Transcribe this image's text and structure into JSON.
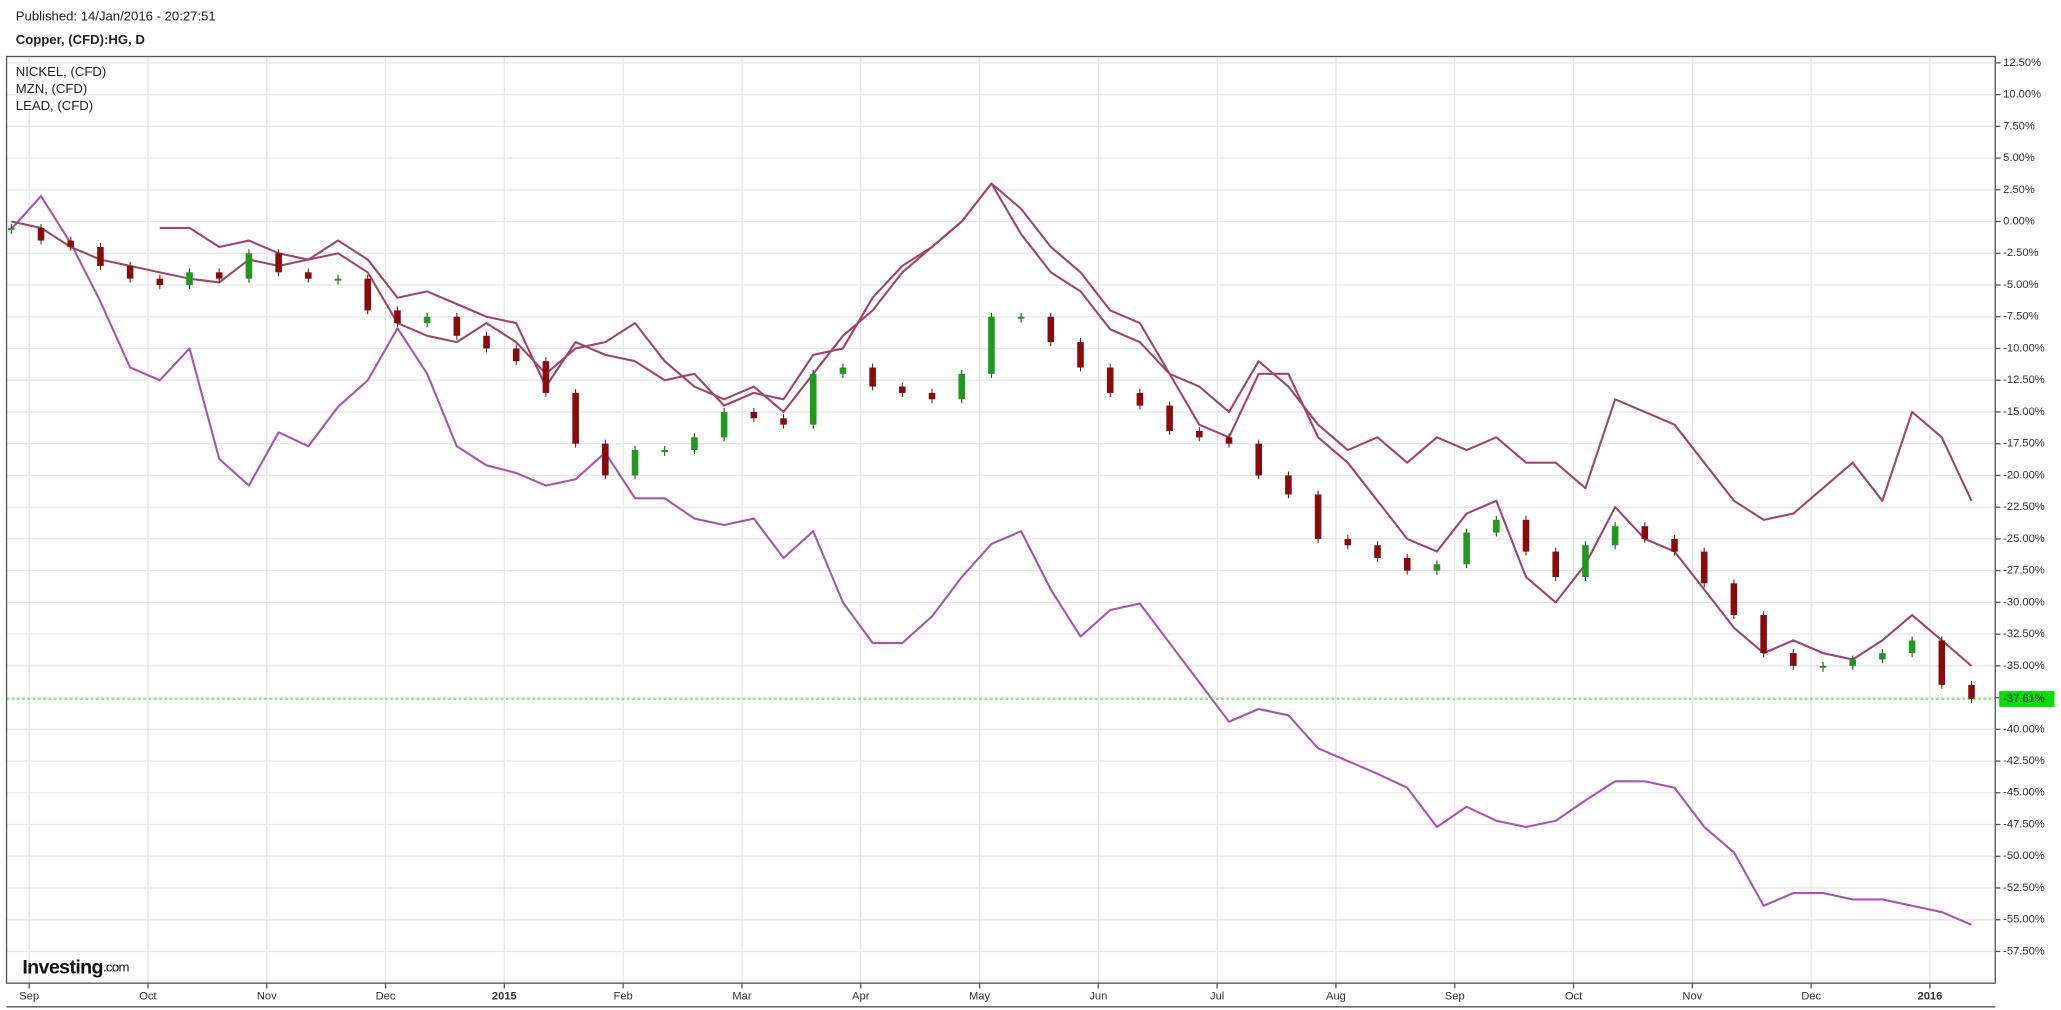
{
  "chart_data": {
    "type": "line",
    "published": "Published: 14/Jan/2016 - 20:27:51",
    "title": "Copper, (CFD):HG, D",
    "logo": "Investing",
    "logo_suffix": ".com",
    "grid": true,
    "x": [
      -0.15,
      0.1,
      0.35,
      0.6,
      0.85,
      1.1,
      1.35,
      1.6,
      1.85,
      2.1,
      2.35,
      2.6,
      2.85,
      3.1,
      3.35,
      3.6,
      3.85,
      4.1,
      4.35,
      4.6,
      4.85,
      5.1,
      5.35,
      5.6,
      5.85,
      6.1,
      6.35,
      6.6,
      6.85,
      7.1,
      7.35,
      7.6,
      7.85,
      8.1,
      8.35,
      8.6,
      8.85,
      9.1,
      9.35,
      9.6,
      9.85,
      10.1,
      10.35,
      10.6,
      10.85,
      11.1,
      11.35,
      11.6,
      11.85,
      12.1,
      12.35,
      12.6,
      12.85,
      13.1,
      13.35,
      13.6,
      13.85,
      14.1,
      14.35,
      14.6,
      14.85,
      15.1,
      15.35,
      15.6,
      15.85,
      16.1,
      16.35
    ],
    "xlim": [
      -0.19,
      16.55
    ],
    "xticks": [
      {
        "value": 0,
        "label": "Sep"
      },
      {
        "value": 1,
        "label": "Oct"
      },
      {
        "value": 2,
        "label": "Nov"
      },
      {
        "value": 3,
        "label": "Dec"
      },
      {
        "value": 4,
        "label": "2015"
      },
      {
        "value": 5,
        "label": "Feb"
      },
      {
        "value": 6,
        "label": "Mar"
      },
      {
        "value": 7,
        "label": "Apr"
      },
      {
        "value": 8,
        "label": "May"
      },
      {
        "value": 9,
        "label": "Jun"
      },
      {
        "value": 10,
        "label": "Jul"
      },
      {
        "value": 11,
        "label": "Aug"
      },
      {
        "value": 12,
        "label": "Sep"
      },
      {
        "value": 13,
        "label": "Oct"
      },
      {
        "value": 14,
        "label": "Nov"
      },
      {
        "value": 15,
        "label": "Dec"
      },
      {
        "value": 16,
        "label": "2016"
      }
    ],
    "ylim": [
      -60,
      13
    ],
    "yticks": [
      {
        "value": 12.5,
        "label": "12.50%"
      },
      {
        "value": 10,
        "label": "10.00%"
      },
      {
        "value": 7.5,
        "label": "7.50%"
      },
      {
        "value": 5,
        "label": "5.00%"
      },
      {
        "value": 2.5,
        "label": "2.50%"
      },
      {
        "value": 0,
        "label": "0.00%"
      },
      {
        "value": -2.5,
        "label": "-2.50%"
      },
      {
        "value": -5,
        "label": "-5.00%"
      },
      {
        "value": -7.5,
        "label": "-7.50%"
      },
      {
        "value": -10,
        "label": "-10.00%"
      },
      {
        "value": -12.5,
        "label": "-12.50%"
      },
      {
        "value": -15,
        "label": "-15.00%"
      },
      {
        "value": -17.5,
        "label": "-17.50%"
      },
      {
        "value": -20,
        "label": "-20.00%"
      },
      {
        "value": -22.5,
        "label": "-22.50%"
      },
      {
        "value": -25,
        "label": "-25.00%"
      },
      {
        "value": -27.5,
        "label": "-27.50%"
      },
      {
        "value": -30,
        "label": "-30.00%"
      },
      {
        "value": -32.5,
        "label": "-32.50%"
      },
      {
        "value": -35,
        "label": "-35.00%"
      },
      {
        "value": -37.5,
        "label": "-37.50%"
      },
      {
        "value": -40,
        "label": "-40.00%"
      },
      {
        "value": -42.5,
        "label": "-42.50%"
      },
      {
        "value": -45,
        "label": "-45.00%"
      },
      {
        "value": -47.5,
        "label": "-47.50%"
      },
      {
        "value": -50,
        "label": "-50.00%"
      },
      {
        "value": -52.5,
        "label": "-52.50%"
      },
      {
        "value": -55,
        "label": "-55.00%"
      },
      {
        "value": -57.5,
        "label": "-57.50%"
      }
    ],
    "main_series": {
      "type": "candlestick",
      "up_color": "#1f9a1f",
      "down_color": "#8b0a0a",
      "values": [
        -0.5,
        -1.5,
        -2,
        -3.5,
        -4.5,
        -5,
        -4,
        -4.5,
        -2.5,
        -4,
        -4.5,
        -4.5,
        -7,
        -8,
        -7.5,
        -9,
        -10,
        -11,
        -13.5,
        -17.5,
        -20,
        -18,
        -18,
        -17,
        -15,
        -15.5,
        -16,
        -12,
        -11.5,
        -13,
        -13.5,
        -14,
        -12,
        -7.5,
        -7.5,
        -9.5,
        -11.5,
        -13.5,
        -14.5,
        -16.5,
        -17,
        -17.5,
        -20,
        -21.5,
        -25,
        -25.5,
        -26.5,
        -27.5,
        -27,
        -24.5,
        -23.5,
        -26,
        -28,
        -25.5,
        -24,
        -25,
        -26,
        -28.5,
        -31,
        -34,
        -35,
        -35,
        -34.5,
        -34,
        -33,
        -36.5,
        -37.61
      ]
    },
    "current_value": {
      "value": -37.61,
      "label": "-37.61%",
      "color": "#00dd00"
    },
    "series": [
      {
        "name": "NICKEL,  (CFD)",
        "color": "#a754b4",
        "values": [
          -0.6,
          2,
          -1.7,
          -6.3,
          -11.5,
          -12.5,
          -10,
          -18.7,
          -20.8,
          -16.6,
          -17.7,
          -14.6,
          -12.5,
          -8.4,
          -12,
          -17.7,
          -19.2,
          -19.8,
          -20.8,
          -20.3,
          -18.2,
          -21.8,
          -21.8,
          -23.4,
          -23.9,
          -23.4,
          -26.5,
          -24.4,
          -30,
          -33.2,
          -33.2,
          -31.1,
          -28,
          -25.4,
          -24.4,
          -29,
          -32.7,
          -30.6,
          -30.1,
          -33.2,
          -36.3,
          -39.4,
          -38.4,
          -38.9,
          -41.5,
          -42.5,
          -43.5,
          -44.6,
          -47.7,
          -46.1,
          -47.2,
          -47.7,
          -47.2,
          -45.6,
          -44.1,
          -44.1,
          -44.6,
          -47.7,
          -49.7,
          -53.9,
          -52.9,
          -52.9,
          -53.4,
          -53.4,
          -53.9,
          -54.4,
          -55.4
        ]
      },
      {
        "name": "MZN,  (CFD)",
        "color": "#a24273",
        "values": [
          null,
          null,
          null,
          null,
          null,
          -0.5,
          -0.5,
          -2,
          -1.5,
          -2.5,
          -3,
          -1.5,
          -3,
          -6,
          -5.5,
          -6.5,
          -7.5,
          -8,
          -13,
          -9.5,
          -10.5,
          -11,
          -12.5,
          -12,
          -14.5,
          -13.5,
          -14,
          -10.5,
          -10,
          -6,
          -3.5,
          -2,
          0,
          3,
          1,
          -2,
          -4,
          -7,
          -8,
          -12,
          -16,
          -17,
          -12,
          -12,
          -17,
          -19,
          -22,
          -25,
          -26,
          -23,
          -22,
          -28,
          -30,
          -27,
          -22.5,
          -25,
          -26,
          -29,
          -32,
          -34,
          -33,
          -34,
          -34.5,
          -33,
          -31,
          -33,
          -35
        ]
      },
      {
        "name": "LEAD,  (CFD)",
        "color": "#a0466c",
        "values": [
          0,
          -0.5,
          -2,
          -3,
          -3.5,
          -4,
          -4.5,
          -4.8,
          -3,
          -3.5,
          -3,
          -2.5,
          -4,
          -8,
          -9,
          -9.5,
          -8,
          -9.5,
          -12,
          -10,
          -9.5,
          -8,
          -11,
          -13,
          -14,
          -13,
          -15,
          -12,
          -9,
          -7,
          -4,
          -2,
          0,
          3,
          -1,
          -4,
          -5.5,
          -8.5,
          -9.5,
          -12,
          -13,
          -15,
          -11,
          -13,
          -16,
          -18,
          -17,
          -19,
          -17,
          -18,
          -17,
          -19,
          -19,
          -21,
          -14,
          -15,
          -16,
          -19,
          -22,
          -23.5,
          -23,
          -21,
          -19,
          -22,
          -15,
          -17,
          -22
        ]
      }
    ]
  }
}
